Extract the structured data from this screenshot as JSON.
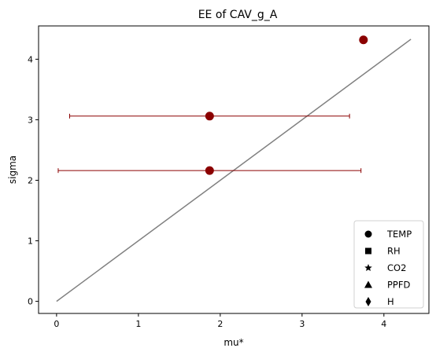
{
  "chart_data": {
    "type": "scatter",
    "title": "EE of CAV_g_A",
    "xlabel": "mu*",
    "ylabel": "sigma",
    "xlim": [
      -0.22,
      4.55
    ],
    "ylim": [
      -0.2,
      4.55
    ],
    "xticks": [
      0,
      1,
      2,
      3,
      4
    ],
    "yticks": [
      0,
      1,
      2,
      3,
      4
    ],
    "grid": false,
    "legend_position": "bottom-right",
    "reference_line": {
      "x": [
        0,
        4.33
      ],
      "y": [
        0,
        4.33
      ],
      "color": "#808080"
    },
    "series": [
      {
        "marker": "circle",
        "color": "#8b0000",
        "points": [
          {
            "x": 1.87,
            "y": 2.16,
            "xerr": 1.85
          },
          {
            "x": 1.87,
            "y": 3.06,
            "xerr": 1.71
          },
          {
            "x": 3.75,
            "y": 4.32,
            "xerr": 0
          }
        ]
      }
    ],
    "legend": [
      {
        "label": "TEMP",
        "marker": "circle"
      },
      {
        "label": "RH",
        "marker": "square"
      },
      {
        "label": "CO2",
        "marker": "star"
      },
      {
        "label": "PPFD",
        "marker": "triangle"
      },
      {
        "label": "H",
        "marker": "diamond"
      }
    ]
  }
}
